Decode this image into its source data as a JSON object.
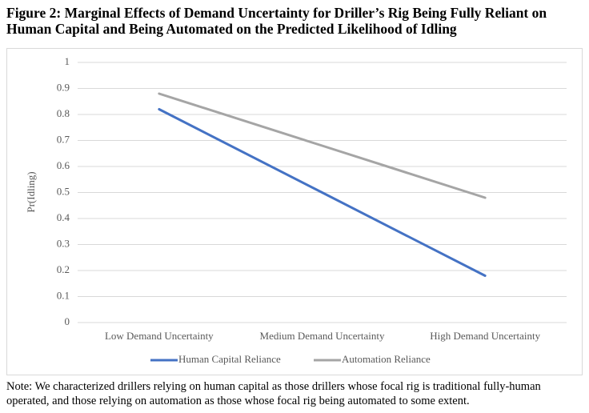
{
  "chart_data": {
    "type": "line",
    "title": "Figure 2: Marginal Effects of Demand Uncertainty for Driller’s Rig Being Fully Reliant on Human Capital and Being Automated on the Predicted Likelihood of Idling",
    "y_label": "Pr(Idling)",
    "categories": [
      "Low Demand Uncertainty",
      "Medium Demand Uncertainty",
      "High Demand Uncertainty"
    ],
    "series": [
      {
        "name": "Human Capital Reliance",
        "color": "#4472c4",
        "values": [
          0.82,
          0.5,
          0.18
        ]
      },
      {
        "name": "Automation Reliance",
        "color": "#a5a5a5",
        "values": [
          0.88,
          0.68,
          0.48
        ]
      }
    ],
    "ylim": [
      0,
      1
    ],
    "yticks": [
      0,
      0.1,
      0.2,
      0.3,
      0.4,
      0.5,
      0.6,
      0.7,
      0.8,
      0.9,
      1
    ],
    "grid": true,
    "legend": "bottom",
    "note": "Note: We characterized drillers relying on human capital as those drillers whose focal rig is traditional fully-human operated, and those relying on automation as those whose focal rig being automated to some extent."
  }
}
